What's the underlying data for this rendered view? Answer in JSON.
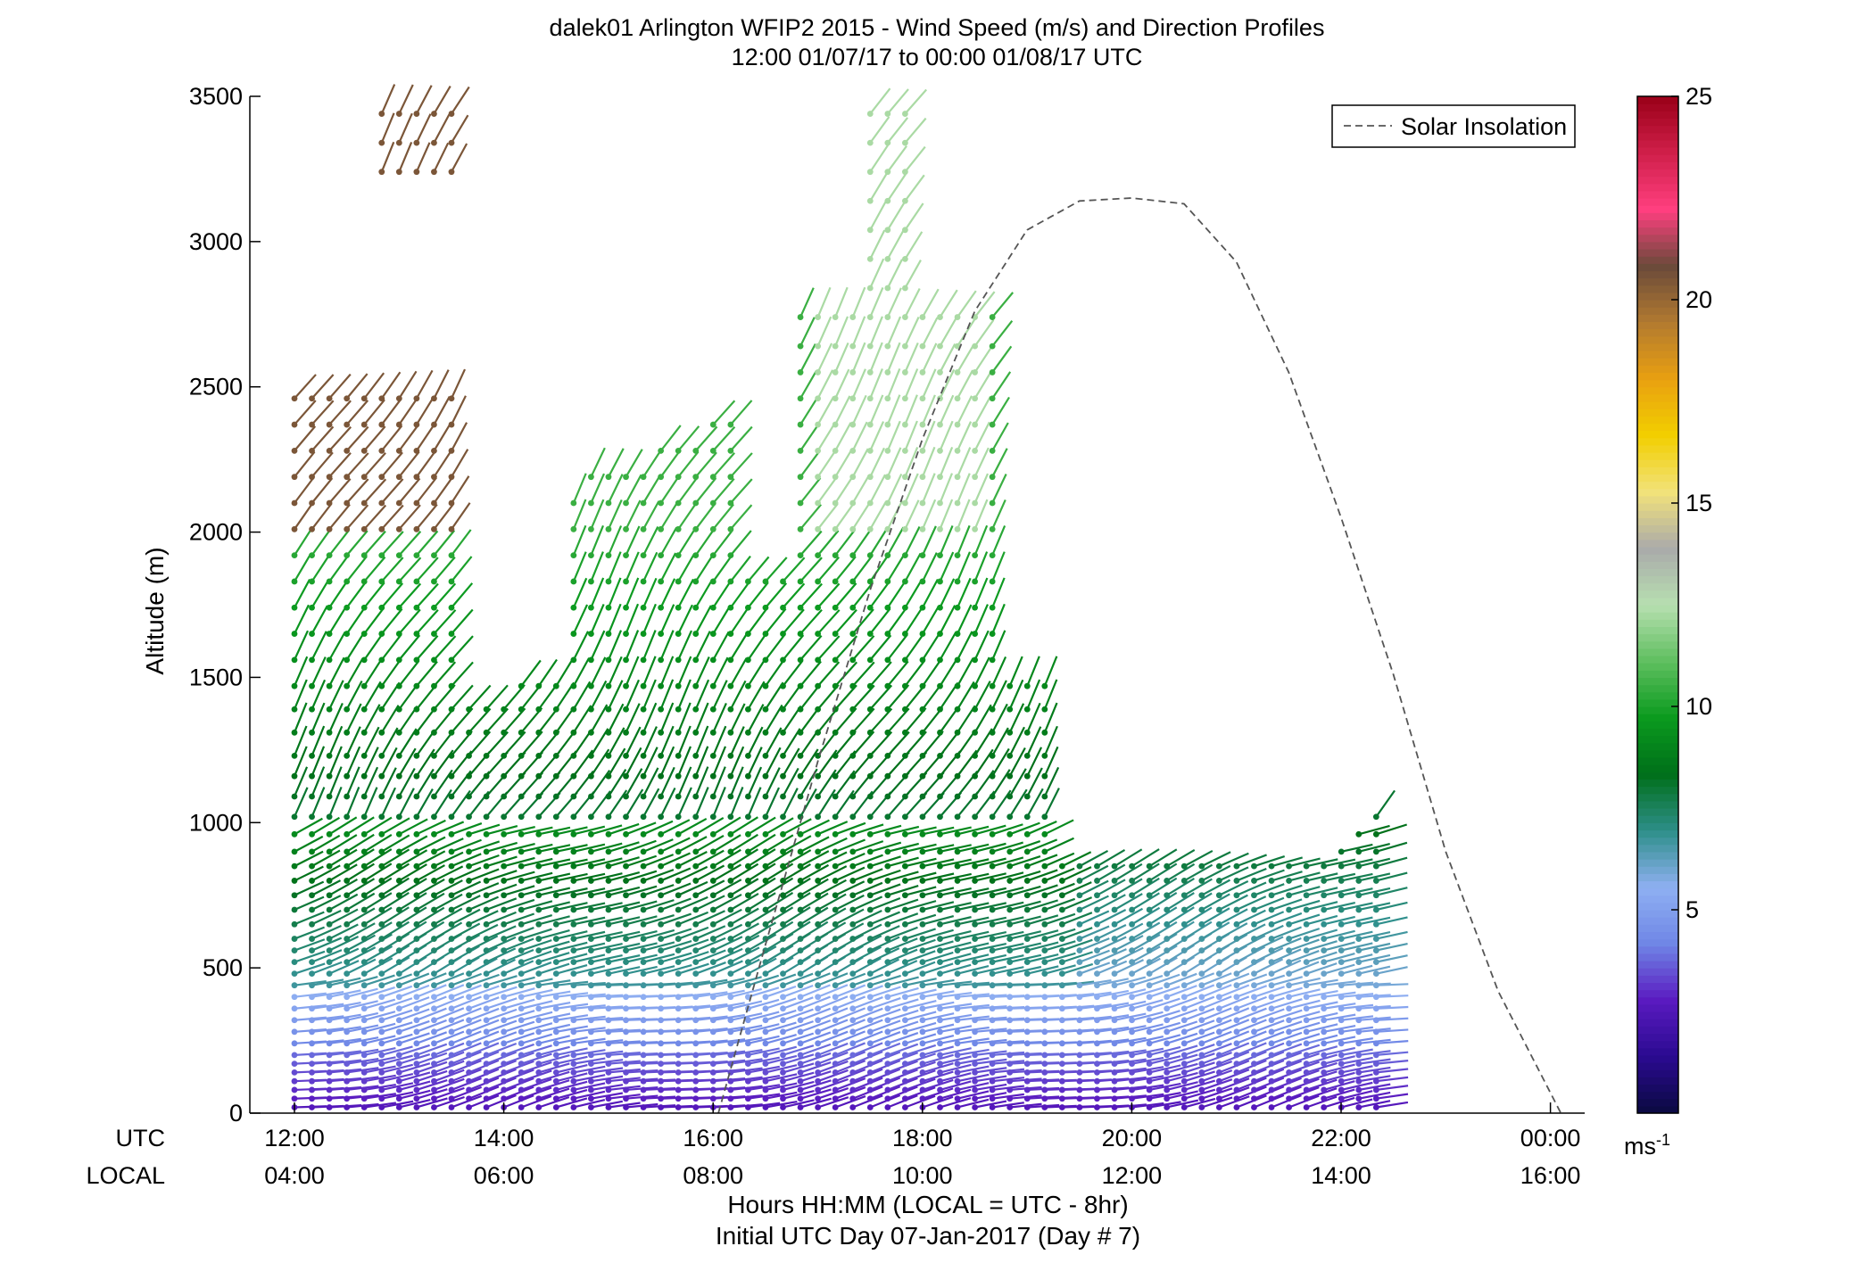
{
  "chart_data": {
    "type": "wind-barb-profile",
    "title": "dalek01 Arlington WFIP2 2015 - Wind Speed (m/s) and Direction Profiles",
    "subtitle": "12:00 01/07/17 to 00:00 01/08/17  UTC",
    "ylabel": "Altitude (m)",
    "xlabel_line1": "Hours HH:MM  (LOCAL = UTC - 8hr)",
    "xlabel_line2": "Initial UTC Day 07-Jan-2017 (Day # 7)",
    "x_row_labels": [
      "UTC",
      "LOCAL"
    ],
    "x_ticks_utc": [
      "12:00",
      "14:00",
      "16:00",
      "18:00",
      "20:00",
      "22:00",
      "00:00"
    ],
    "x_ticks_local": [
      "04:00",
      "06:00",
      "08:00",
      "10:00",
      "12:00",
      "14:00",
      "16:00"
    ],
    "x_tick_hours": [
      12,
      14,
      16,
      18,
      20,
      22,
      24
    ],
    "xlim_hours": [
      11.6,
      24.5
    ],
    "ylim": [
      0,
      3500
    ],
    "y_ticks": [
      0,
      500,
      1000,
      1500,
      2000,
      2500,
      3000,
      3500
    ],
    "legend": {
      "entries": [
        "Solar Insolation"
      ],
      "placement": "top-right",
      "line_style": "dashed"
    },
    "colorbar": {
      "range": [
        0,
        25
      ],
      "ticks": [
        5,
        10,
        15,
        20,
        25
      ],
      "unit_label": "ms",
      "unit_exponent": "-1",
      "stops": [
        "#0a0a40",
        "#2a0a90",
        "#5a1ac0",
        "#6f86e6",
        "#8fb0f2",
        "#2e8f8a",
        "#006f1a",
        "#0a9a1e",
        "#5fbf5f",
        "#b7dfb0",
        "#aaaaaa",
        "#f2e27a",
        "#f2cf00",
        "#e9a010",
        "#b27a30",
        "#6a4a3a",
        "#ff3f7f",
        "#d01f4a",
        "#9a0018"
      ]
    },
    "solar_insolation": {
      "x_hours": [
        16.05,
        16.5,
        17.0,
        17.5,
        18.0,
        18.5,
        19.0,
        19.5,
        20.0,
        20.5,
        21.0,
        21.5,
        22.0,
        22.5,
        23.0,
        23.5,
        24.1
      ],
      "y_m": [
        0,
        580,
        1210,
        1800,
        2320,
        2760,
        3040,
        3140,
        3150,
        3130,
        2930,
        2550,
        2050,
        1510,
        900,
        420,
        0
      ]
    },
    "profiles": {
      "t_start_hours": 12.0,
      "t_step_hours": 0.1667,
      "count": 63,
      "levels_m": [
        20,
        50,
        80,
        110,
        140,
        170,
        200,
        240,
        280,
        320,
        360,
        400,
        440,
        480,
        520,
        560,
        600,
        650,
        700,
        750,
        800,
        850,
        900,
        960,
        1020,
        1090,
        1160,
        1230,
        1310,
        1390,
        1470,
        1560,
        1650,
        1740,
        1830,
        1920,
        2010,
        2100,
        2190,
        2280,
        2370,
        2460,
        2550,
        2640,
        2740,
        2840,
        2940,
        3040,
        3140,
        3240,
        3340,
        3440
      ]
    }
  }
}
